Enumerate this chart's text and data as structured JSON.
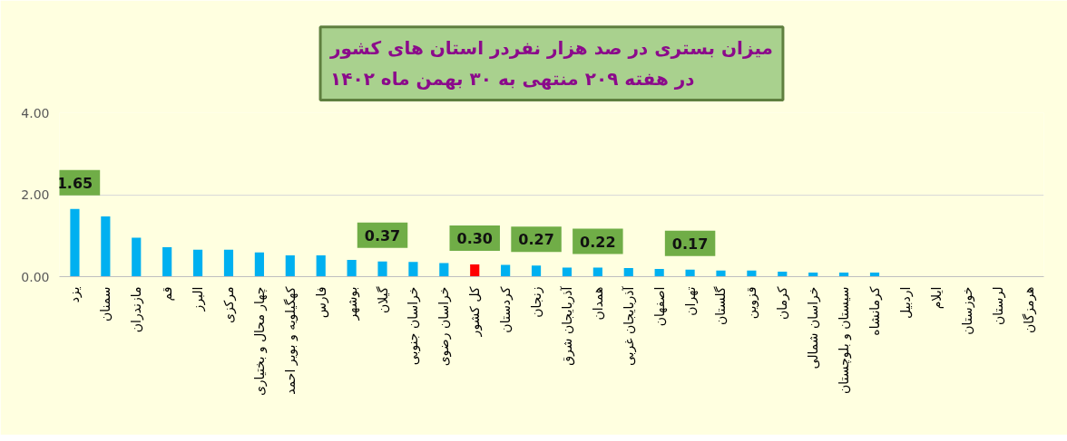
{
  "chart_data": {
    "type": "bar",
    "title": "میزان بستری در صد هزار نفردر استان های کشور\nدر هفته ۲۰۹ منتهی به ۳۰ بهمن ماه ۱۴۰۲",
    "categories": [
      "یزد",
      "سمنان",
      "مازندران",
      "قم",
      "البرز",
      "مرکزی",
      "چهار محال و بختیاری",
      "کهگیلویه و بویر احمد",
      "فارس",
      "بوشهر",
      "گیلان",
      "خراسان جنوبی",
      "خراسان رضوی",
      "کل کشور",
      "کردستان",
      "زنجان",
      "آذربایجان شرق",
      "همدان",
      "آذربایجان غربی",
      "اصفهان",
      "تهران",
      "گلستان",
      "قزوین",
      "کرمان",
      "خراسان شمالی",
      "سیستان و بلوچستان",
      "کرمانشاه",
      "اردبیل",
      "ایلام",
      "خوزستان",
      "لرستان",
      "هرمزگان"
    ],
    "values": [
      1.65,
      1.47,
      0.95,
      0.72,
      0.66,
      0.66,
      0.59,
      0.52,
      0.52,
      0.41,
      0.37,
      0.36,
      0.33,
      0.3,
      0.29,
      0.27,
      0.22,
      0.22,
      0.21,
      0.19,
      0.17,
      0.15,
      0.15,
      0.12,
      0.1,
      0.1,
      0.1,
      0,
      0,
      0,
      0,
      0
    ],
    "colors": [
      "#00b0f0",
      "#00b0f0",
      "#00b0f0",
      "#00b0f0",
      "#00b0f0",
      "#00b0f0",
      "#00b0f0",
      "#00b0f0",
      "#00b0f0",
      "#00b0f0",
      "#00b0f0",
      "#00b0f0",
      "#00b0f0",
      "#ff0000",
      "#00b0f0",
      "#00b0f0",
      "#00b0f0",
      "#00b0f0",
      "#00b0f0",
      "#00b0f0",
      "#00b0f0",
      "#00b0f0",
      "#00b0f0",
      "#00b0f0",
      "#00b0f0",
      "#00b0f0",
      "#00b0f0",
      "#00b0f0",
      "#00b0f0",
      "#00b0f0",
      "#00b0f0",
      "#00b0f0"
    ],
    "value_labels": [
      "1.65",
      null,
      null,
      null,
      null,
      null,
      null,
      null,
      null,
      null,
      "0.37",
      null,
      null,
      "0.30",
      null,
      "0.27",
      null,
      "0.22",
      null,
      null,
      "0.17",
      null,
      null,
      null,
      null,
      null,
      null,
      null,
      null,
      null,
      null,
      null
    ],
    "ylim": [
      0,
      4
    ],
    "yticks": [
      {
        "value": 0,
        "label": "0.00"
      },
      {
        "value": 2,
        "label": "2.00"
      },
      {
        "value": 4,
        "label": "4.00"
      }
    ],
    "grid": "y"
  }
}
